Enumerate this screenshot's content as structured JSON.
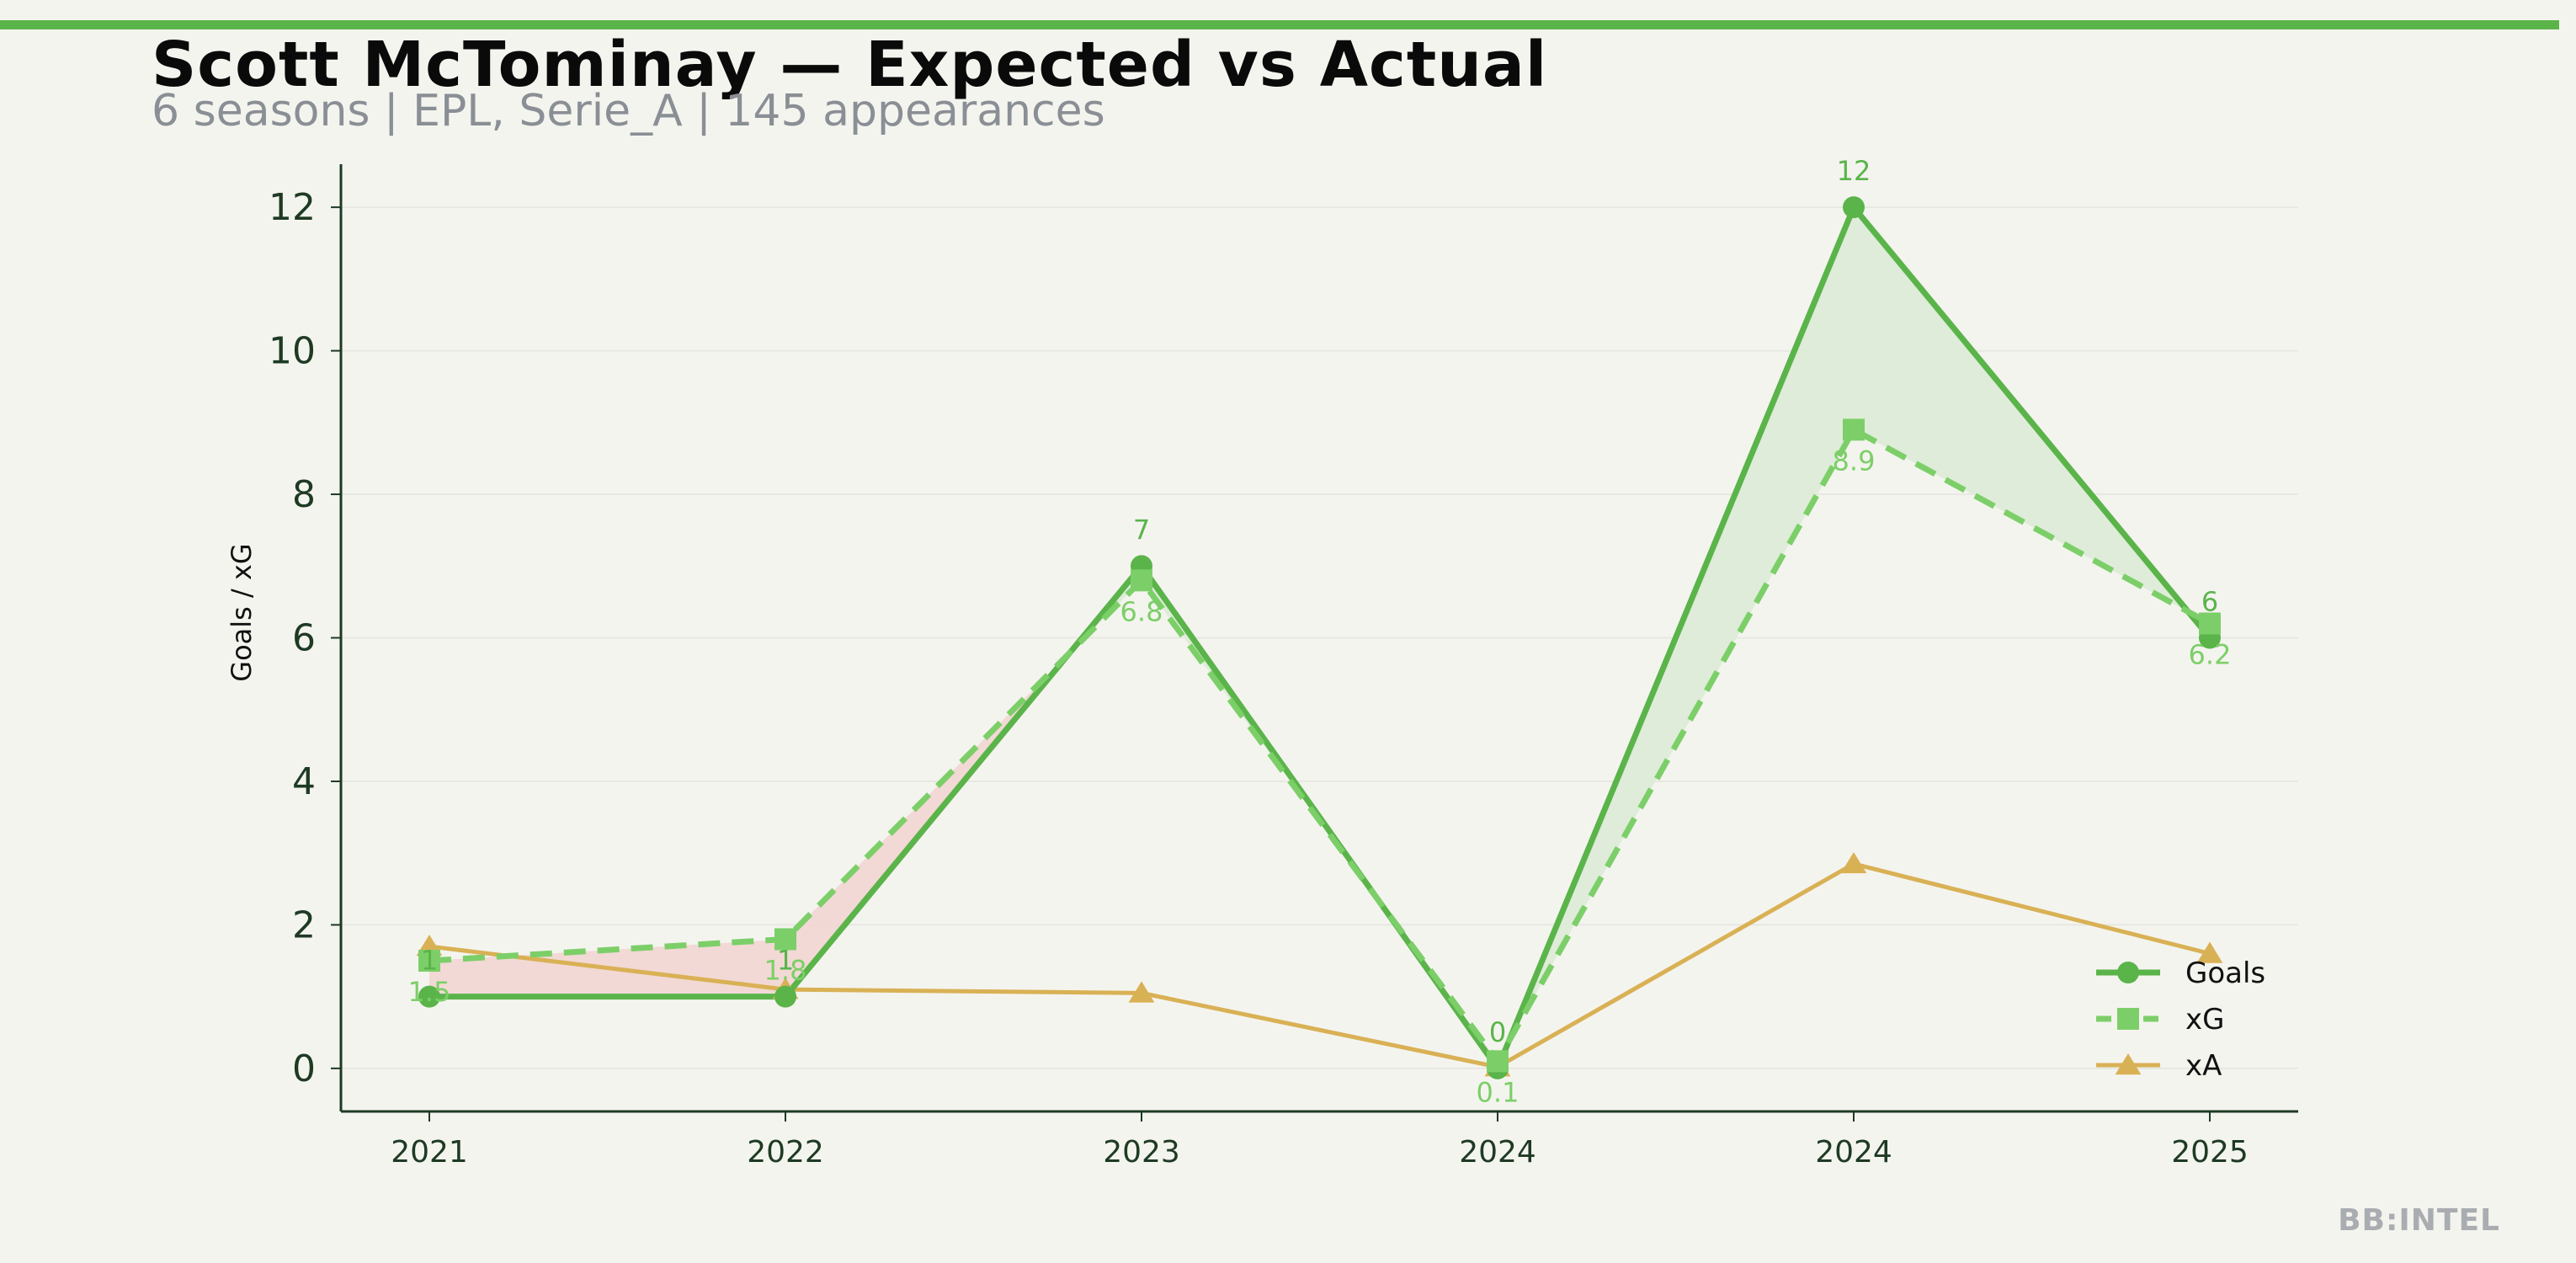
{
  "header": {
    "title": "Scott McTominay — Expected vs Actual",
    "subtitle": "6 seasons | EPL, Serie_A | 145 appearances"
  },
  "watermark": "BB:INTEL",
  "chart_data": {
    "type": "line",
    "title": "Scott McTominay — Expected vs Actual",
    "subtitle": "6 seasons | EPL, Serie_A | 145 appearances",
    "xlabel": "",
    "ylabel": "Goals / xG",
    "categories": [
      "2021",
      "2022",
      "2023",
      "2024",
      "2024",
      "2025"
    ],
    "ylim": [
      -0.6,
      12.6
    ],
    "yticks": [
      0,
      2,
      4,
      6,
      8,
      10,
      12
    ],
    "grid": "horizontal, faint",
    "legend_position": "bottom-right",
    "series": [
      {
        "name": "Goals",
        "values": [
          1,
          1,
          7,
          0,
          12,
          6
        ],
        "color": "#5ab44a",
        "marker": "circle",
        "style": "solid",
        "labels": [
          "1",
          "1",
          "7",
          "0",
          "12",
          "6"
        ]
      },
      {
        "name": "xG",
        "values": [
          1.5,
          1.8,
          6.8,
          0.1,
          8.9,
          6.2
        ],
        "color": "#7ccf68",
        "marker": "square",
        "style": "dashed",
        "labels": [
          "1.5",
          "1.8",
          "6.8",
          "0.1",
          "8.9",
          "6.2"
        ]
      },
      {
        "name": "xA",
        "values": [
          1.7,
          1.1,
          1.05,
          0.02,
          2.85,
          1.6
        ],
        "color": "#d9b155",
        "marker": "triangle",
        "style": "solid"
      }
    ],
    "fill_colors": {
      "overperform": "#dcebd6",
      "underperform": "#f2d6d2"
    }
  }
}
